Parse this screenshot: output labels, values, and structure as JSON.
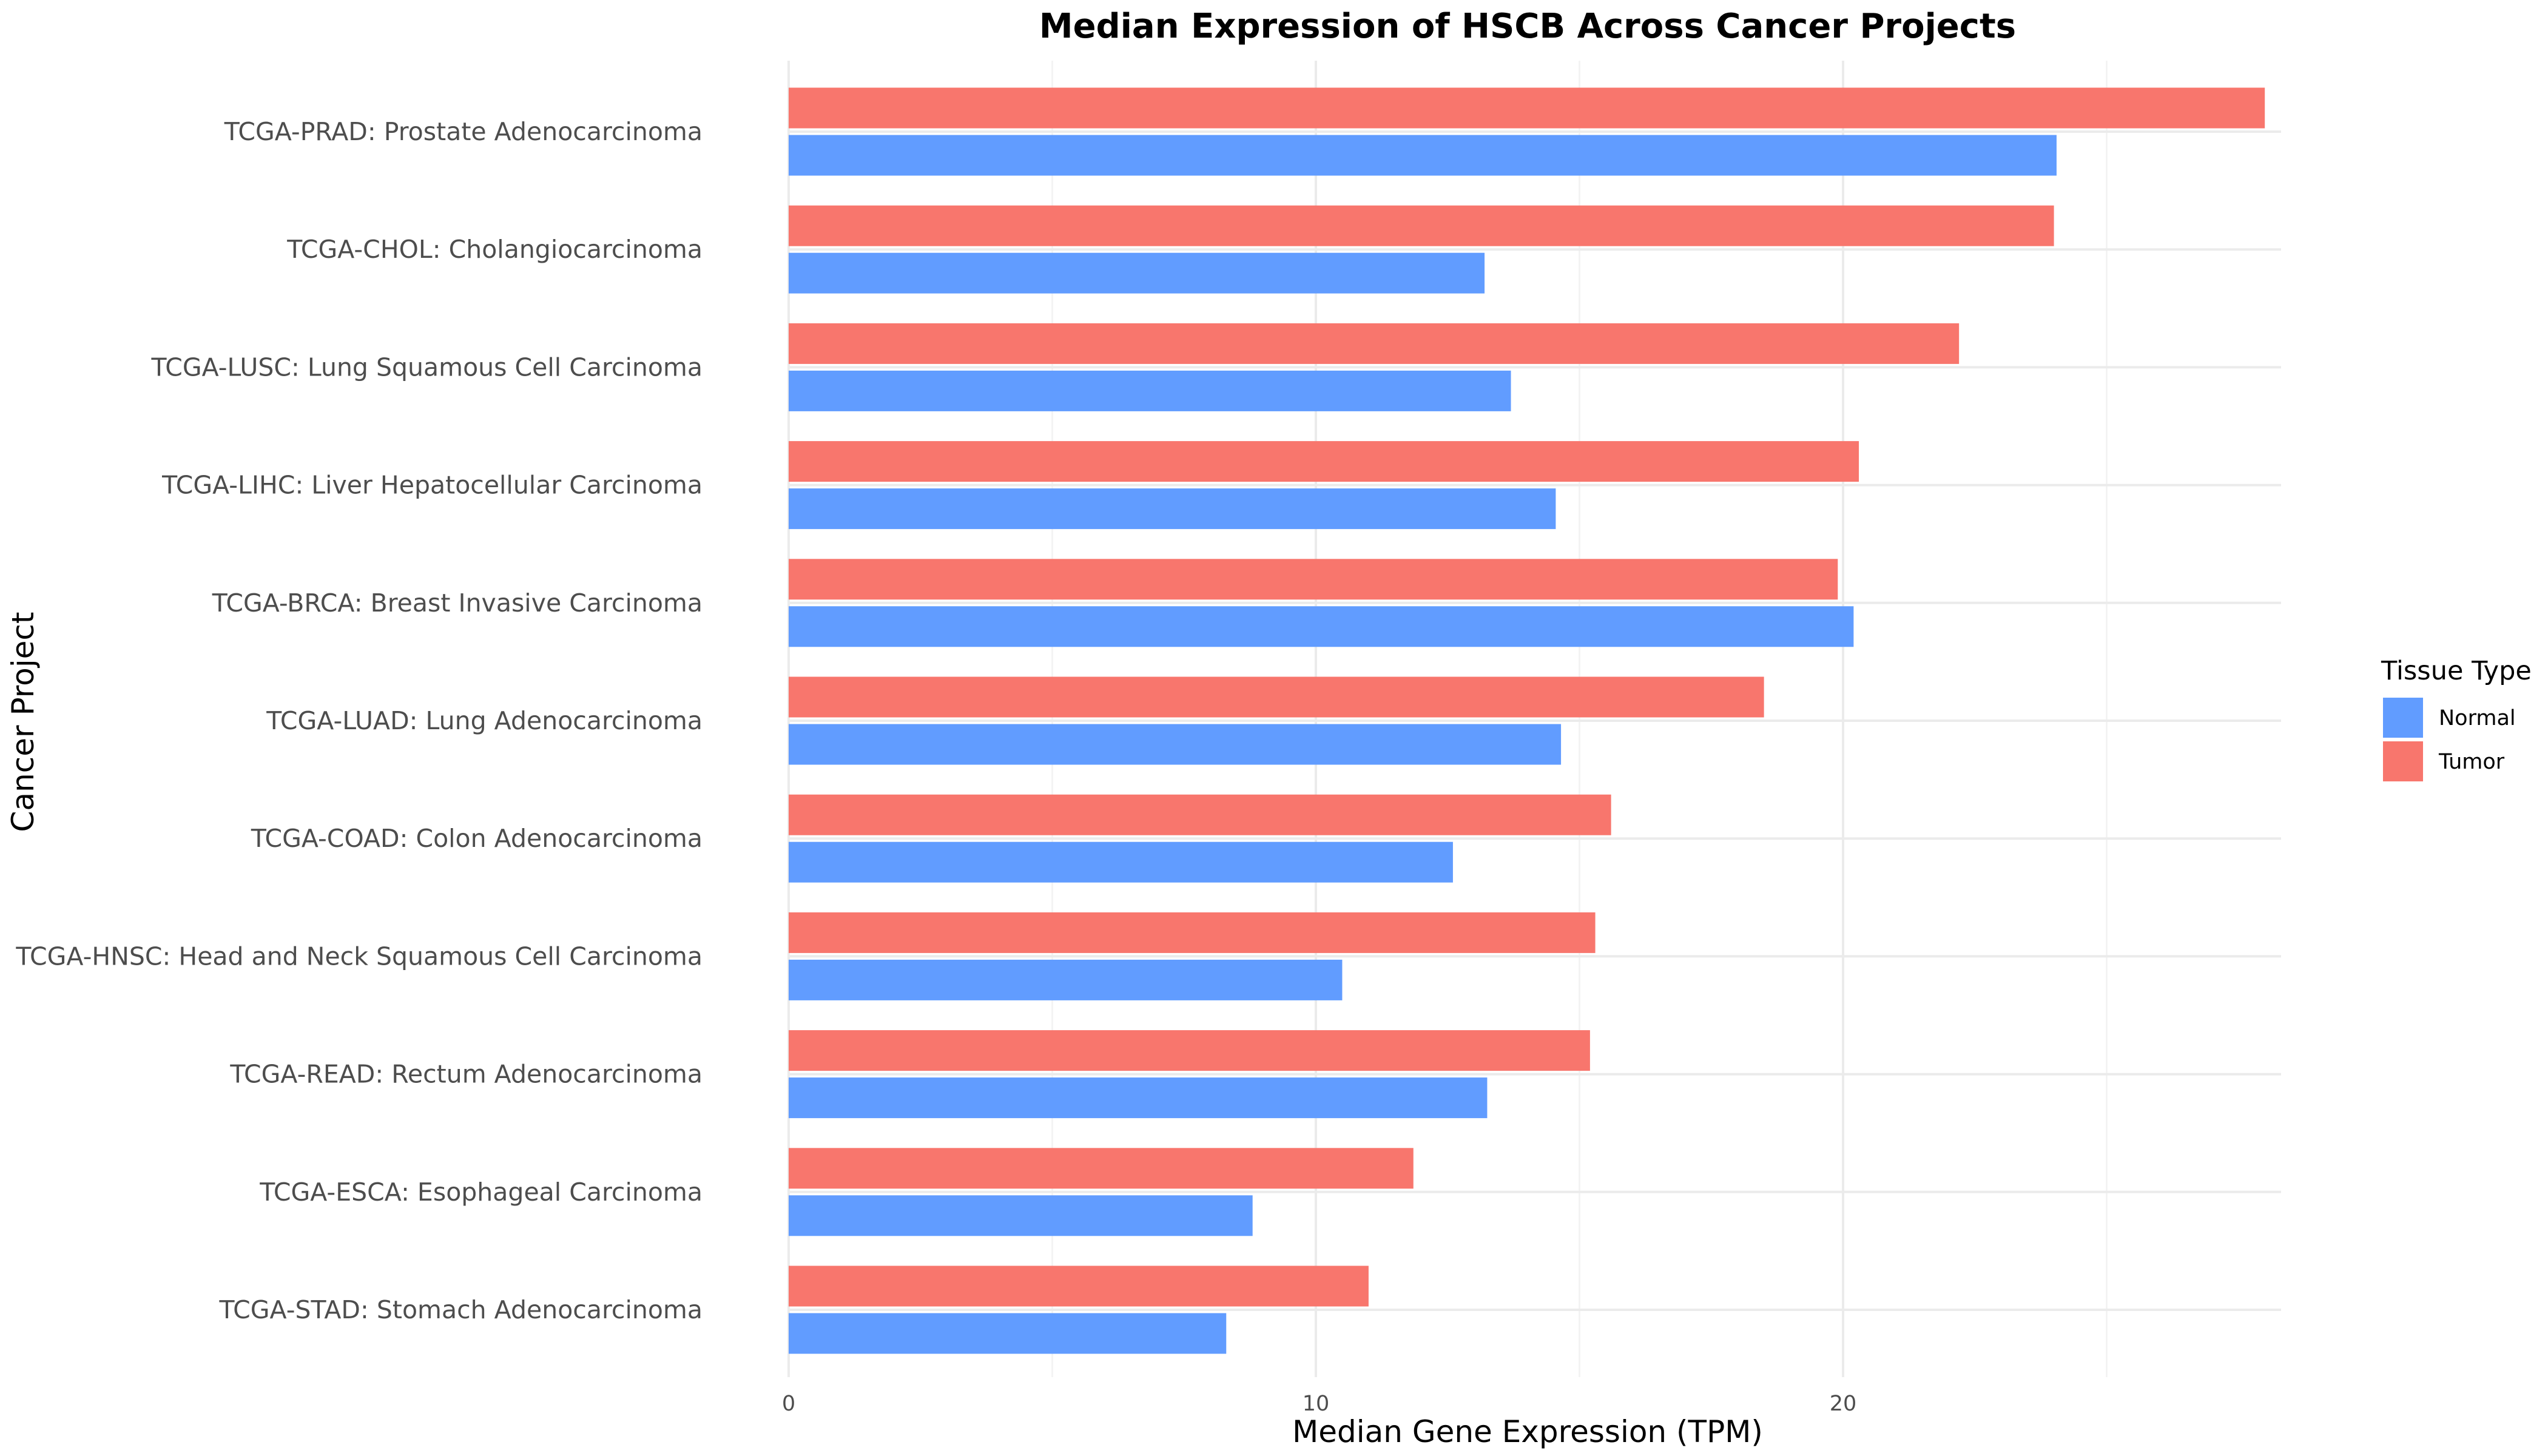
{
  "chart_data": {
    "type": "bar",
    "orientation": "horizontal",
    "title": "Median Expression of HSCB Across Cancer Projects",
    "xlabel": "Median Gene Expression (TPM)",
    "ylabel": "Cancer Project",
    "xlim": [
      0,
      30
    ],
    "xticks": [
      0,
      10,
      20
    ],
    "grid": true,
    "legend": {
      "title": "Tissue Type",
      "placement": "right",
      "entries": [
        "Normal",
        "Tumor"
      ]
    },
    "categories": [
      "TCGA-PRAD: Prostate Adenocarcinoma",
      "TCGA-CHOL: Cholangiocarcinoma",
      "TCGA-LUSC: Lung Squamous Cell Carcinoma",
      "TCGA-LIHC: Liver Hepatocellular Carcinoma",
      "TCGA-BRCA: Breast Invasive Carcinoma",
      "TCGA-LUAD: Lung Adenocarcinoma",
      "TCGA-COAD: Colon Adenocarcinoma",
      "TCGA-HNSC: Head and Neck Squamous Cell Carcinoma",
      "TCGA-READ: Rectum Adenocarcinoma",
      "TCGA-ESCA: Esophageal Carcinoma",
      "TCGA-STAD: Stomach Adenocarcinoma"
    ],
    "series": [
      {
        "name": "Tumor",
        "color": "#F8766D",
        "values": [
          28.0,
          24.0,
          22.2,
          20.3,
          19.9,
          18.5,
          15.6,
          15.3,
          15.2,
          11.85,
          11.0
        ]
      },
      {
        "name": "Normal",
        "color": "#619CFF",
        "values": [
          24.05,
          13.2,
          13.7,
          14.55,
          20.2,
          14.65,
          12.6,
          10.5,
          13.25,
          8.8,
          8.3
        ]
      }
    ]
  }
}
